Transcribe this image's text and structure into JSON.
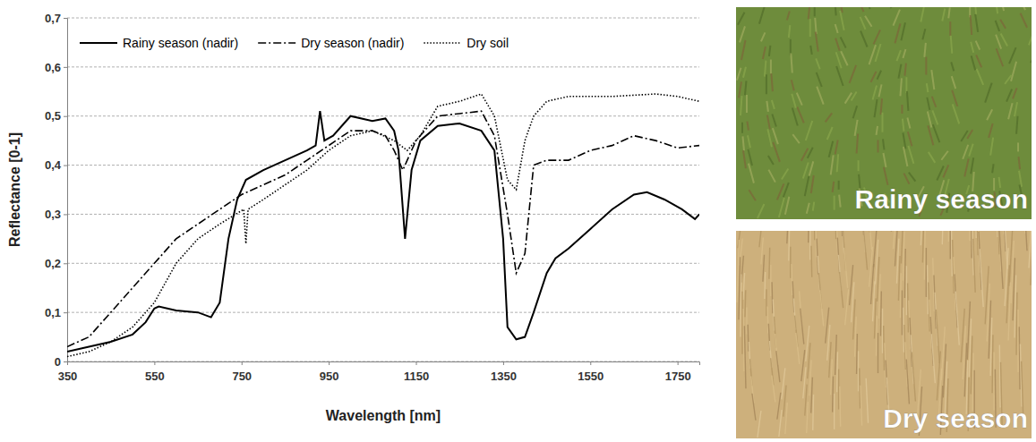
{
  "chart_data": {
    "type": "line",
    "x_label": "Wavelength [nm]",
    "y_label": "Reflectance [0-1]",
    "xlim": [
      350,
      1800
    ],
    "ylim": [
      0,
      0.7
    ],
    "xticks": [
      350,
      550,
      750,
      950,
      1150,
      1350,
      1550,
      1750
    ],
    "yticks": [
      0,
      {
        "value": 0.1,
        "label": "0,1"
      },
      {
        "value": 0.2,
        "label": "0,2"
      },
      {
        "value": 0.3,
        "label": "0,3"
      },
      {
        "value": 0.4,
        "label": "0,4"
      },
      {
        "value": 0.5,
        "label": "0,5"
      },
      {
        "value": 0.6,
        "label": "0,6"
      },
      {
        "value": 0.7,
        "label": "0,7"
      }
    ],
    "grid": true,
    "legend": "upper left",
    "series": [
      {
        "name": "Rainy season (nadir)",
        "color": "#000000",
        "line_style": "solid",
        "x": [
          350,
          400,
          450,
          500,
          530,
          550,
          560,
          600,
          650,
          680,
          700,
          720,
          740,
          760,
          800,
          850,
          900,
          920,
          930,
          940,
          960,
          1000,
          1050,
          1080,
          1100,
          1110,
          1125,
          1140,
          1160,
          1200,
          1250,
          1300,
          1330,
          1350,
          1360,
          1380,
          1400,
          1420,
          1450,
          1470,
          1500,
          1550,
          1600,
          1650,
          1680,
          1720,
          1760,
          1790,
          1800
        ],
        "values": [
          0.02,
          0.03,
          0.04,
          0.055,
          0.08,
          0.108,
          0.112,
          0.104,
          0.1,
          0.09,
          0.12,
          0.25,
          0.33,
          0.37,
          0.39,
          0.41,
          0.43,
          0.44,
          0.51,
          0.45,
          0.46,
          0.5,
          0.49,
          0.495,
          0.47,
          0.43,
          0.25,
          0.39,
          0.45,
          0.48,
          0.485,
          0.47,
          0.43,
          0.25,
          0.07,
          0.045,
          0.05,
          0.1,
          0.18,
          0.21,
          0.23,
          0.27,
          0.31,
          0.34,
          0.345,
          0.33,
          0.31,
          0.29,
          0.3
        ]
      },
      {
        "name": "Dry season (nadir)",
        "color": "#000000",
        "line_style": "dashdot",
        "x": [
          350,
          400,
          450,
          500,
          550,
          600,
          650,
          700,
          750,
          800,
          850,
          900,
          950,
          1000,
          1050,
          1080,
          1100,
          1120,
          1150,
          1200,
          1250,
          1300,
          1330,
          1360,
          1380,
          1400,
          1420,
          1450,
          1500,
          1550,
          1600,
          1650,
          1700,
          1750,
          1800
        ],
        "values": [
          0.03,
          0.05,
          0.1,
          0.15,
          0.2,
          0.25,
          0.28,
          0.31,
          0.34,
          0.36,
          0.38,
          0.41,
          0.44,
          0.47,
          0.47,
          0.46,
          0.43,
          0.39,
          0.45,
          0.5,
          0.505,
          0.51,
          0.46,
          0.3,
          0.18,
          0.22,
          0.4,
          0.41,
          0.41,
          0.43,
          0.44,
          0.46,
          0.45,
          0.435,
          0.44
        ]
      },
      {
        "name": "Dry soil",
        "color": "#000000",
        "line_style": "dotted",
        "x": [
          350,
          400,
          450,
          500,
          550,
          600,
          650,
          700,
          755,
          760,
          765,
          800,
          850,
          900,
          950,
          1000,
          1050,
          1100,
          1130,
          1160,
          1200,
          1250,
          1300,
          1330,
          1360,
          1380,
          1400,
          1420,
          1450,
          1500,
          1600,
          1700,
          1750,
          1800
        ],
        "values": [
          0.01,
          0.02,
          0.04,
          0.07,
          0.12,
          0.2,
          0.25,
          0.28,
          0.31,
          0.24,
          0.31,
          0.33,
          0.36,
          0.39,
          0.43,
          0.46,
          0.47,
          0.45,
          0.43,
          0.46,
          0.52,
          0.53,
          0.545,
          0.5,
          0.37,
          0.35,
          0.45,
          0.5,
          0.53,
          0.54,
          0.54,
          0.545,
          0.54,
          0.53
        ]
      }
    ]
  },
  "images": [
    {
      "label": "Rainy season"
    },
    {
      "label": "Dry season"
    }
  ]
}
